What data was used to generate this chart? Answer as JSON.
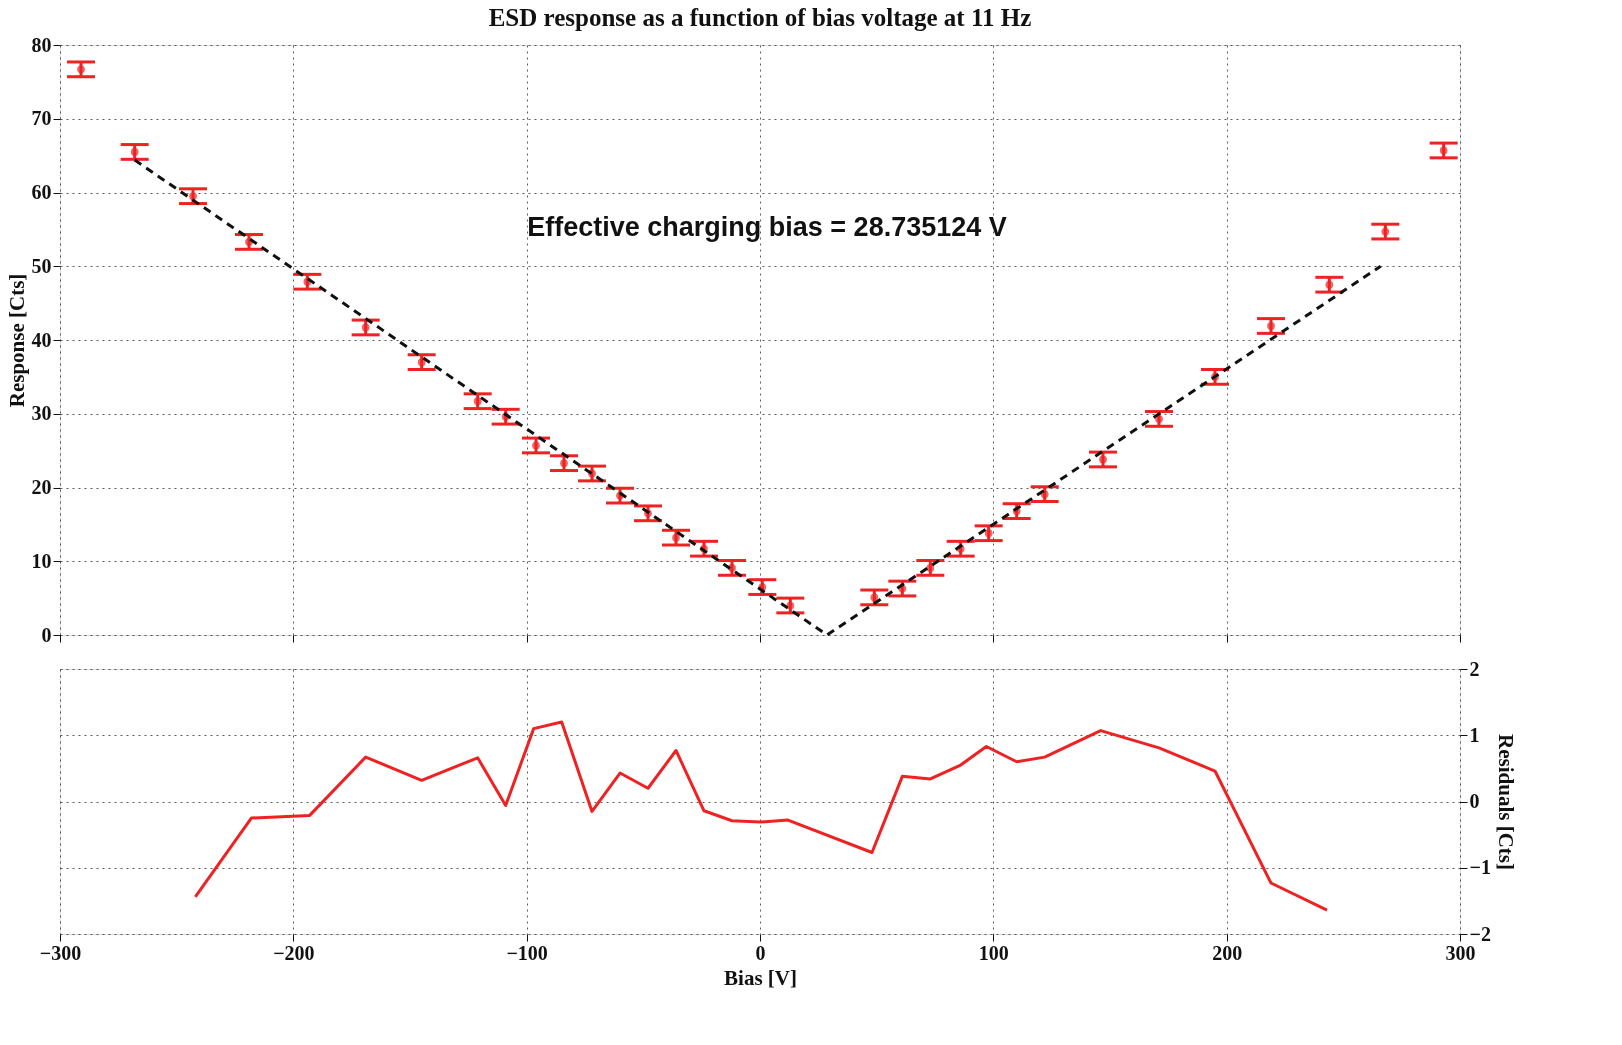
{
  "chart_data": [
    {
      "type": "scatter",
      "title": "ESD response as a function of bias voltage at 11 Hz",
      "ylabel": "Response [Cts]",
      "annotations": [
        "Effective charging bias = 28.735124 V"
      ],
      "xlim": [
        -300,
        300
      ],
      "ylim": [
        0,
        80
      ],
      "yticks": [
        0,
        10,
        20,
        30,
        40,
        50,
        60,
        70,
        80
      ],
      "xticks": [
        -300,
        -200,
        -100,
        0,
        100,
        200,
        300
      ],
      "tick_labels": "y",
      "grid": true,
      "series": [
        {
          "color": "#ee2222",
          "x": [
            -291,
            -268,
            -243,
            -219,
            -194,
            -169,
            -145,
            -121,
            -109,
            -96,
            -84,
            -72,
            -60,
            -48,
            -36,
            -24,
            -12,
            1,
            13,
            49,
            61,
            73,
            86,
            98,
            110,
            122,
            147,
            171,
            195,
            219,
            244,
            268,
            293
          ],
          "values": [
            76.7,
            65.5,
            59.5,
            53.3,
            47.9,
            41.7,
            37.0,
            31.7,
            29.6,
            25.7,
            23.3,
            21.9,
            18.9,
            16.5,
            13.2,
            11.7,
            9.1,
            6.5,
            4.0,
            5.1,
            6.3,
            9.1,
            11.7,
            13.8,
            16.8,
            19.1,
            23.8,
            29.3,
            35.0,
            41.9,
            47.5,
            54.7,
            65.7
          ],
          "errors": [
            1,
            1,
            1,
            1,
            1,
            1,
            1,
            1,
            1,
            1,
            1,
            1,
            1,
            1,
            1,
            1,
            1,
            1,
            1,
            1,
            1,
            1,
            1,
            1,
            1,
            1,
            1,
            1,
            1,
            1,
            1,
            1,
            1
          ]
        },
        {
          "type": "line",
          "color": "#111111",
          "line_style": "dashed",
          "x": [
            -268,
            28.735124,
            266
          ],
          "values": [
            64.4,
            0,
            50
          ]
        }
      ]
    },
    {
      "type": "line",
      "xlabel": "Bias [V]",
      "y2label": "Residuals [Cts]",
      "xlim": [
        -300,
        300
      ],
      "xticks": [
        -300,
        -200,
        -100,
        0,
        100,
        200,
        300
      ],
      "y2lim": [
        -2,
        2
      ],
      "y2ticks": [
        -2,
        -1,
        0,
        1,
        2
      ],
      "grid": true,
      "series": [
        {
          "axis": "y2",
          "color": "#ee2222",
          "x": [
            -242,
            -218,
            -193,
            -169,
            -145,
            -121,
            -109,
            -97,
            -85,
            -72,
            -60,
            -48,
            -36,
            -24,
            -12,
            0,
            12,
            48,
            61,
            73,
            86,
            97,
            110,
            122,
            146,
            171,
            195,
            219,
            243
          ],
          "values": [
            -1.44,
            -0.25,
            -0.21,
            0.67,
            0.32,
            0.66,
            -0.06,
            1.1,
            1.2,
            -0.15,
            0.43,
            0.2,
            0.77,
            -0.14,
            -0.29,
            -0.31,
            -0.28,
            -0.77,
            0.38,
            0.34,
            0.55,
            0.83,
            0.6,
            0.67,
            1.07,
            0.81,
            0.46,
            -1.23,
            -1.64
          ]
        }
      ]
    }
  ]
}
